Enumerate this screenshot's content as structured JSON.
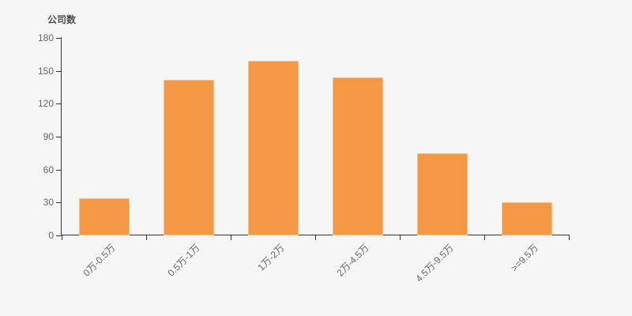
{
  "chart": {
    "background_color": "#f6f6f6",
    "bar_color": "#f59846",
    "bar_edge_color": "#f9c08a",
    "axis_color": "#333333",
    "tick_label_color": "#666666",
    "axis_name_color": "#4d4d4d"
  },
  "chart_data": {
    "type": "bar",
    "title": "公司数",
    "ylabel": "公司数",
    "xlabel": "",
    "categories": [
      "0万-0.5万",
      "0.5万-1万",
      "1万-2万",
      "2万-4.5万",
      "4.5万-9.5万",
      ">=9.5万"
    ],
    "values": [
      34,
      142,
      159,
      144,
      75,
      30
    ],
    "ylim": [
      0,
      180
    ],
    "y_ticks": [
      0,
      30,
      60,
      90,
      120,
      150,
      180
    ],
    "x_label_rotation_deg": 45,
    "grid": false,
    "legend_position": "none"
  }
}
